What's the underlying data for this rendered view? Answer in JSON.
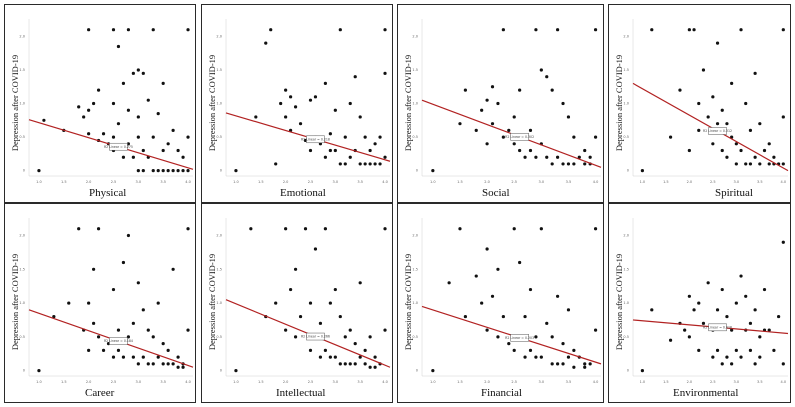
{
  "colors": {
    "points": "#111111",
    "trend_line": "#b22222",
    "frame": "#2a2a2a"
  },
  "chart_data": [
    {
      "type": "scatter",
      "xlabel": "Physical",
      "ylabel": "Depression after  COVID-19",
      "xlim": [
        0.8,
        4.1
      ],
      "ylim": [
        -0.05,
        2.2
      ],
      "xticks": [
        "1.0",
        "1.5",
        "2.0",
        "2.5",
        "3.0",
        "3.5",
        "4.0"
      ],
      "yticks": [
        "0",
        "0.5",
        "1.0",
        "1.5",
        "2.0"
      ],
      "trend": {
        "start": [
          0.8,
          0.76
        ],
        "end": [
          4.1,
          0.02
        ]
      },
      "fit_label": "R2 Linear = 0.275",
      "x": [
        1.0,
        1.1,
        1.5,
        1.8,
        1.9,
        2.0,
        2.0,
        2.0,
        2.1,
        2.2,
        2.2,
        2.3,
        2.4,
        2.5,
        2.5,
        2.5,
        2.5,
        2.6,
        2.6,
        2.7,
        2.7,
        2.8,
        2.8,
        2.8,
        2.9,
        2.9,
        3.0,
        3.0,
        3.0,
        3.0,
        3.1,
        3.1,
        3.1,
        3.2,
        3.2,
        3.3,
        3.3,
        3.3,
        3.4,
        3.4,
        3.5,
        3.5,
        3.5,
        3.6,
        3.6,
        3.7,
        3.7,
        3.8,
        3.8,
        3.9,
        3.9,
        4.0,
        4.0,
        4.0
      ],
      "y": [
        0.0,
        0.75,
        0.6,
        0.95,
        0.8,
        2.1,
        0.55,
        0.9,
        1.0,
        1.2,
        0.45,
        0.55,
        0.4,
        2.1,
        1.0,
        0.5,
        0.3,
        1.85,
        0.7,
        1.3,
        0.2,
        2.1,
        0.9,
        0.4,
        1.45,
        0.2,
        1.5,
        0.8,
        0.5,
        0.0,
        1.45,
        0.3,
        0.0,
        1.05,
        0.2,
        2.1,
        0.5,
        0.0,
        0.85,
        0.0,
        1.3,
        0.3,
        0.0,
        0.4,
        0.0,
        0.6,
        0.0,
        0.3,
        0.0,
        0.2,
        0.0,
        2.1,
        0.5,
        0.0
      ]
    },
    {
      "type": "scatter",
      "xlabel": "Emotional",
      "ylabel": "Depression after  COVID-19",
      "xlim": [
        0.8,
        4.1
      ],
      "ylim": [
        -0.05,
        2.2
      ],
      "xticks": [
        "1.0",
        "1.5",
        "2.0",
        "2.5",
        "3.0",
        "3.5",
        "4.0"
      ],
      "yticks": [
        "0",
        "0.5",
        "1.0",
        "1.5",
        "2.0"
      ],
      "trend": {
        "start": [
          0.8,
          0.86
        ],
        "end": [
          4.1,
          0.14
        ]
      },
      "fit_label": "R2 Linear = 0.218",
      "x": [
        1.0,
        1.4,
        1.6,
        1.7,
        1.8,
        1.9,
        2.0,
        2.0,
        2.1,
        2.1,
        2.2,
        2.3,
        2.4,
        2.5,
        2.5,
        2.6,
        2.6,
        2.7,
        2.8,
        2.8,
        2.9,
        2.9,
        3.0,
        3.0,
        3.1,
        3.1,
        3.2,
        3.2,
        3.3,
        3.3,
        3.4,
        3.4,
        3.5,
        3.5,
        3.6,
        3.6,
        3.7,
        3.7,
        3.8,
        3.8,
        3.9,
        3.9,
        4.0,
        4.0,
        4.0
      ],
      "y": [
        0.0,
        0.8,
        1.9,
        2.1,
        0.1,
        1.0,
        1.2,
        0.8,
        1.1,
        0.6,
        0.95,
        0.7,
        0.45,
        0.3,
        1.05,
        1.1,
        0.5,
        0.4,
        1.3,
        0.2,
        0.55,
        0.3,
        0.9,
        0.3,
        2.1,
        0.1,
        0.5,
        0.1,
        1.0,
        0.2,
        1.4,
        0.3,
        0.8,
        0.1,
        0.5,
        0.1,
        0.3,
        0.1,
        0.4,
        0.1,
        0.5,
        0.1,
        2.1,
        1.45,
        0.2
      ]
    },
    {
      "type": "scatter",
      "xlabel": "Social",
      "ylabel": "Depression after  COVID-19",
      "xlim": [
        0.8,
        4.1
      ],
      "ylim": [
        -0.05,
        2.2
      ],
      "xticks": [
        "1.0",
        "1.5",
        "2.0",
        "2.5",
        "3.0",
        "3.5",
        "4.0"
      ],
      "yticks": [
        "0",
        "0.5",
        "1.0",
        "1.5",
        "2.0"
      ],
      "trend": {
        "start": [
          0.8,
          1.05
        ],
        "end": [
          4.1,
          0.05
        ]
      },
      "fit_label": "R2 Linear = 0.302",
      "x": [
        1.0,
        1.5,
        1.6,
        1.8,
        1.9,
        2.0,
        2.0,
        2.1,
        2.1,
        2.2,
        2.3,
        2.3,
        2.4,
        2.5,
        2.5,
        2.6,
        2.6,
        2.7,
        2.7,
        2.8,
        2.8,
        2.9,
        2.9,
        3.0,
        3.0,
        3.1,
        3.1,
        3.2,
        3.2,
        3.3,
        3.3,
        3.4,
        3.4,
        3.5,
        3.5,
        3.6,
        3.6,
        3.7,
        3.8,
        3.8,
        3.9,
        3.9,
        4.0,
        4.0
      ],
      "y": [
        0.0,
        0.7,
        1.2,
        0.6,
        0.9,
        1.05,
        0.4,
        1.25,
        0.7,
        1.0,
        2.1,
        0.5,
        0.6,
        0.4,
        0.8,
        0.3,
        1.2,
        0.2,
        0.5,
        0.6,
        0.3,
        2.1,
        0.2,
        1.5,
        0.4,
        1.4,
        0.2,
        1.2,
        0.1,
        2.1,
        0.2,
        1.0,
        0.1,
        0.8,
        0.1,
        0.5,
        0.1,
        0.2,
        0.3,
        0.1,
        0.2,
        0.1,
        2.1,
        0.5
      ]
    },
    {
      "type": "scatter",
      "xlabel": "Spiritual",
      "ylabel": "Depression after  COVID-19",
      "xlim": [
        0.8,
        4.1
      ],
      "ylim": [
        -0.05,
        2.2
      ],
      "xticks": [
        "1.0",
        "1.5",
        "2.0",
        "2.5",
        "3.0",
        "3.5",
        "4.0"
      ],
      "yticks": [
        "0",
        "0.5",
        "1.0",
        "1.5",
        "2.0"
      ],
      "trend": {
        "start": [
          0.8,
          1.3
        ],
        "end": [
          4.1,
          0.0
        ]
      },
      "fit_label": "R2 Linear = 0.312",
      "x": [
        1.0,
        1.2,
        1.6,
        1.8,
        2.0,
        2.0,
        2.1,
        2.2,
        2.2,
        2.3,
        2.4,
        2.5,
        2.5,
        2.6,
        2.6,
        2.7,
        2.7,
        2.8,
        2.8,
        2.9,
        2.9,
        3.0,
        3.0,
        3.1,
        3.1,
        3.2,
        3.2,
        3.3,
        3.3,
        3.4,
        3.4,
        3.5,
        3.5,
        3.6,
        3.7,
        3.7,
        3.8,
        3.8,
        3.9,
        4.0,
        4.0,
        4.0
      ],
      "y": [
        0.0,
        2.1,
        0.5,
        1.2,
        2.1,
        0.3,
        2.1,
        1.0,
        0.6,
        1.5,
        0.8,
        1.1,
        0.4,
        1.9,
        0.7,
        0.9,
        0.3,
        0.7,
        0.2,
        0.5,
        1.3,
        0.4,
        0.1,
        2.1,
        0.3,
        1.0,
        0.1,
        0.6,
        0.1,
        1.45,
        0.2,
        0.7,
        0.1,
        0.3,
        0.4,
        0.1,
        0.2,
        0.1,
        0.1,
        2.1,
        0.8,
        0.1
      ]
    },
    {
      "type": "scatter",
      "xlabel": "Career",
      "ylabel": "Depression after  COVID-19",
      "xlim": [
        0.8,
        4.1
      ],
      "ylim": [
        -0.05,
        2.2
      ],
      "xticks": [
        "1.0",
        "1.5",
        "2.0",
        "2.5",
        "3.0",
        "3.5",
        "4.0"
      ],
      "yticks": [
        "0",
        "0.5",
        "1.0",
        "1.5",
        "2.0"
      ],
      "trend": {
        "start": [
          0.8,
          0.9
        ],
        "end": [
          4.1,
          0.05
        ]
      },
      "fit_label": "R2 Linear = 0.184",
      "x": [
        1.0,
        1.3,
        1.6,
        1.8,
        1.9,
        2.0,
        2.0,
        2.1,
        2.1,
        2.2,
        2.2,
        2.3,
        2.4,
        2.5,
        2.5,
        2.6,
        2.6,
        2.7,
        2.7,
        2.8,
        2.8,
        2.9,
        2.9,
        3.0,
        3.0,
        3.1,
        3.1,
        3.2,
        3.2,
        3.3,
        3.3,
        3.4,
        3.4,
        3.5,
        3.5,
        3.6,
        3.6,
        3.7,
        3.7,
        3.8,
        3.8,
        3.9,
        3.9,
        4.0,
        4.0
      ],
      "y": [
        0.0,
        0.8,
        1.0,
        2.1,
        0.6,
        1.0,
        0.3,
        1.5,
        0.7,
        2.1,
        0.5,
        0.3,
        0.4,
        1.2,
        0.2,
        0.6,
        0.3,
        1.6,
        0.2,
        2.0,
        0.5,
        0.7,
        0.2,
        1.3,
        0.1,
        0.9,
        0.2,
        0.6,
        0.1,
        0.5,
        0.1,
        1.0,
        0.2,
        0.4,
        0.1,
        0.3,
        0.1,
        1.5,
        0.1,
        0.2,
        0.05,
        0.1,
        0.05,
        2.1,
        0.6
      ]
    },
    {
      "type": "scatter",
      "xlabel": "Intellectual",
      "ylabel": "Depression after  COVID-19",
      "xlim": [
        0.8,
        4.1
      ],
      "ylim": [
        -0.05,
        2.2
      ],
      "xticks": [
        "1.0",
        "1.5",
        "2.0",
        "2.5",
        "3.0",
        "3.5",
        "4.0"
      ],
      "yticks": [
        "0",
        "0.5",
        "1.0",
        "1.5",
        "2.0"
      ],
      "trend": {
        "start": [
          0.8,
          1.05
        ],
        "end": [
          4.1,
          0.05
        ]
      },
      "fit_label": "R2 Linear = 0.266",
      "x": [
        1.0,
        1.3,
        1.6,
        1.8,
        2.0,
        2.0,
        2.1,
        2.2,
        2.2,
        2.3,
        2.4,
        2.5,
        2.5,
        2.6,
        2.6,
        2.7,
        2.7,
        2.8,
        2.8,
        2.9,
        2.9,
        3.0,
        3.0,
        3.1,
        3.1,
        3.2,
        3.2,
        3.3,
        3.3,
        3.4,
        3.4,
        3.5,
        3.5,
        3.6,
        3.6,
        3.7,
        3.7,
        3.8,
        3.8,
        3.9,
        4.0,
        4.0
      ],
      "y": [
        0.0,
        2.1,
        0.8,
        1.0,
        2.1,
        0.6,
        1.2,
        1.5,
        0.5,
        0.8,
        2.1,
        1.0,
        0.3,
        1.8,
        0.5,
        0.7,
        0.2,
        2.1,
        0.3,
        1.0,
        0.2,
        1.2,
        0.2,
        0.8,
        0.1,
        0.5,
        0.1,
        0.6,
        0.1,
        0.4,
        0.1,
        1.3,
        0.2,
        0.3,
        0.1,
        0.5,
        0.05,
        0.2,
        0.05,
        0.1,
        2.1,
        0.6
      ]
    },
    {
      "type": "scatter",
      "xlabel": "Financial",
      "ylabel": "Depression after  COVID-19",
      "xlim": [
        0.8,
        4.1
      ],
      "ylim": [
        -0.05,
        2.2
      ],
      "xticks": [
        "1.0",
        "1.5",
        "2.0",
        "2.5",
        "3.0",
        "3.5",
        "4.0"
      ],
      "yticks": [
        "0",
        "0.5",
        "1.0",
        "1.5",
        "2.0"
      ],
      "trend": {
        "start": [
          0.8,
          0.95
        ],
        "end": [
          4.1,
          0.1
        ]
      },
      "fit_label": "R2 Linear = 0.203",
      "x": [
        1.0,
        1.3,
        1.5,
        1.6,
        1.8,
        1.9,
        2.0,
        2.0,
        2.1,
        2.2,
        2.2,
        2.3,
        2.4,
        2.5,
        2.5,
        2.6,
        2.7,
        2.7,
        2.8,
        2.8,
        2.9,
        2.9,
        3.0,
        3.0,
        3.1,
        3.2,
        3.2,
        3.3,
        3.3,
        3.4,
        3.4,
        3.5,
        3.5,
        3.6,
        3.6,
        3.7,
        3.8,
        3.8,
        3.9,
        4.0,
        4.0
      ],
      "y": [
        0.0,
        1.3,
        2.1,
        0.8,
        1.4,
        1.0,
        0.6,
        1.8,
        1.1,
        1.5,
        0.5,
        0.8,
        0.4,
        2.1,
        0.3,
        1.6,
        0.8,
        0.2,
        1.2,
        0.3,
        0.5,
        0.2,
        2.1,
        0.2,
        0.7,
        0.5,
        0.1,
        1.1,
        0.1,
        0.4,
        0.1,
        0.9,
        0.2,
        0.3,
        0.05,
        0.2,
        0.1,
        0.05,
        0.1,
        2.1,
        0.6
      ]
    },
    {
      "type": "scatter",
      "xlabel": "Environmental",
      "ylabel": "Depression after  COVID-19",
      "xlim": [
        0.8,
        4.1
      ],
      "ylim": [
        -0.05,
        2.2
      ],
      "xticks": [
        "1.0",
        "1.5",
        "2.0",
        "2.5",
        "3.0",
        "3.5",
        "4.0"
      ],
      "yticks": [
        "0",
        "0.5",
        "1.0",
        "1.5",
        "2.0"
      ],
      "trend": {
        "start": [
          0.8,
          0.75
        ],
        "end": [
          4.1,
          0.55
        ]
      },
      "fit_label": "R2 Linear = 0.016",
      "x": [
        1.0,
        1.2,
        1.6,
        1.8,
        1.9,
        2.0,
        2.0,
        2.1,
        2.2,
        2.2,
        2.3,
        2.4,
        2.5,
        2.5,
        2.6,
        2.6,
        2.7,
        2.7,
        2.8,
        2.8,
        2.9,
        2.9,
        3.0,
        3.0,
        3.1,
        3.1,
        3.2,
        3.2,
        3.3,
        3.3,
        3.4,
        3.4,
        3.5,
        3.5,
        3.6,
        3.6,
        3.7,
        3.8,
        3.9,
        4.0,
        4.0
      ],
      "y": [
        0.0,
        0.9,
        0.45,
        0.7,
        0.6,
        1.1,
        0.5,
        0.9,
        1.0,
        0.3,
        0.7,
        1.3,
        0.6,
        0.2,
        0.9,
        0.3,
        1.2,
        0.1,
        0.8,
        0.2,
        0.6,
        0.1,
        1.0,
        0.3,
        1.4,
        0.2,
        1.1,
        0.6,
        0.7,
        0.3,
        0.9,
        0.1,
        0.5,
        0.2,
        1.2,
        0.6,
        0.6,
        0.3,
        0.8,
        1.9,
        0.1
      ]
    }
  ]
}
